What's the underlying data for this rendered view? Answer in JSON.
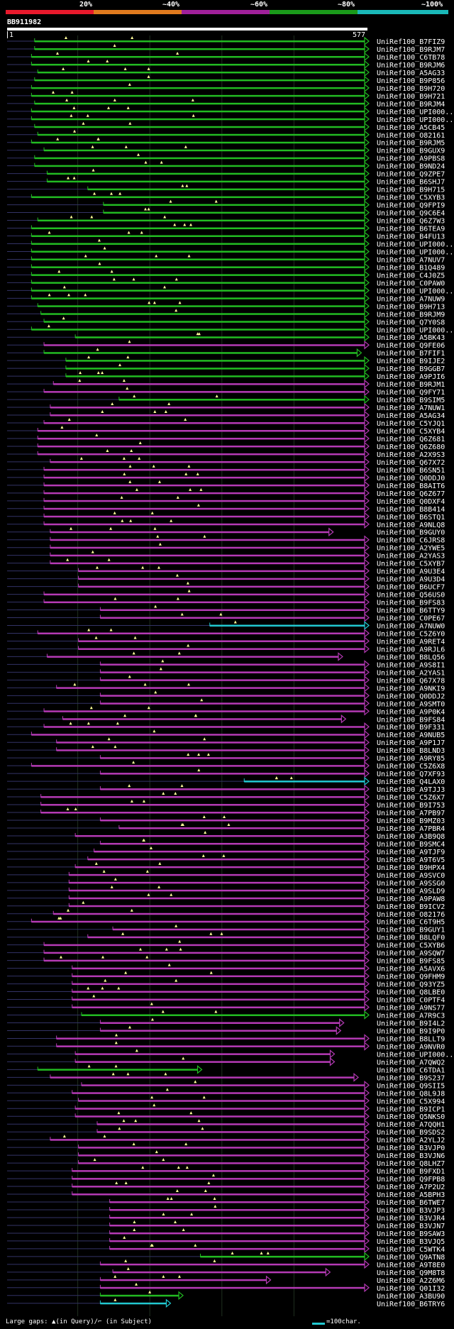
{
  "legend": {
    "ticks": [
      "20%",
      "~40%",
      "~60%",
      "~80%",
      "~100%"
    ],
    "colors": [
      "#e8192c",
      "#e07a1e",
      "#a0209a",
      "#1a9a1a",
      "#1ab8b8"
    ]
  },
  "query": {
    "name": "BB911982",
    "start": "1",
    "end": "577",
    "length": 577
  },
  "colors": {
    "green": "#22bb22",
    "magenta": "#b53ab5",
    "cyan": "#22c8d0",
    "marker": "#ffff99",
    "gap": "#333366"
  },
  "footer": {
    "text": "Large gaps: ▲(in Query)/⌐ (in Subject)",
    "scale_label": "=100char."
  },
  "hits": [
    {
      "id": "UniRef100_B7FIZ9",
      "c": "green",
      "s": 45,
      "e": 577
    },
    {
      "id": "UniRef100_B9RJM7",
      "c": "green",
      "s": 45,
      "e": 577
    },
    {
      "id": "UniRef100_C6TB78",
      "c": "green",
      "s": 40,
      "e": 577
    },
    {
      "id": "UniRef100_B9RJM6",
      "c": "green",
      "s": 40,
      "e": 577
    },
    {
      "id": "UniRef100_A5AG33",
      "c": "green",
      "s": 50,
      "e": 577
    },
    {
      "id": "UniRef100_B9P856",
      "c": "green",
      "s": 45,
      "e": 577
    },
    {
      "id": "UniRef100_B9H720",
      "c": "green",
      "s": 40,
      "e": 577
    },
    {
      "id": "UniRef100_B9H721",
      "c": "green",
      "s": 40,
      "e": 577
    },
    {
      "id": "UniRef100_B9RJM4",
      "c": "green",
      "s": 45,
      "e": 577
    },
    {
      "id": "UniRef100_UPI000..",
      "c": "green",
      "s": 40,
      "e": 577
    },
    {
      "id": "UniRef100_UPI000..",
      "c": "green",
      "s": 40,
      "e": 577
    },
    {
      "id": "UniRef100_A5CB45",
      "c": "green",
      "s": 45,
      "e": 577
    },
    {
      "id": "UniRef100_O82161",
      "c": "green",
      "s": 50,
      "e": 577
    },
    {
      "id": "UniRef100_B9RJM5",
      "c": "green",
      "s": 40,
      "e": 577
    },
    {
      "id": "UniRef100_B9GUX9",
      "c": "green",
      "s": 60,
      "e": 577
    },
    {
      "id": "UniRef100_A9PBS8",
      "c": "green",
      "s": 45,
      "e": 577
    },
    {
      "id": "UniRef100_B9ND24",
      "c": "green",
      "s": 45,
      "e": 577
    },
    {
      "id": "UniRef100_Q9ZPE7",
      "c": "green",
      "s": 65,
      "e": 577
    },
    {
      "id": "UniRef100_B6SHJ7",
      "c": "green",
      "s": 65,
      "e": 577
    },
    {
      "id": "UniRef100_B9H715",
      "c": "green",
      "s": 130,
      "e": 577
    },
    {
      "id": "UniRef100_C5XYB3",
      "c": "green",
      "s": 40,
      "e": 577
    },
    {
      "id": "UniRef100_Q9FPI9",
      "c": "green",
      "s": 155,
      "e": 577
    },
    {
      "id": "UniRef100_Q9C6E4",
      "c": "green",
      "s": 155,
      "e": 577
    },
    {
      "id": "UniRef100_Q6Z7W3",
      "c": "green",
      "s": 50,
      "e": 577
    },
    {
      "id": "UniRef100_B6TEA9",
      "c": "green",
      "s": 40,
      "e": 577
    },
    {
      "id": "UniRef100_B4FU13",
      "c": "green",
      "s": 40,
      "e": 577
    },
    {
      "id": "UniRef100_UPI000..",
      "c": "green",
      "s": 40,
      "e": 577
    },
    {
      "id": "UniRef100_UPI000..",
      "c": "green",
      "s": 40,
      "e": 577
    },
    {
      "id": "UniRef100_A7NUV7",
      "c": "green",
      "s": 40,
      "e": 577
    },
    {
      "id": "UniRef100_B1Q489",
      "c": "green",
      "s": 40,
      "e": 577
    },
    {
      "id": "UniRef100_C4J0Z5",
      "c": "green",
      "s": 40,
      "e": 577
    },
    {
      "id": "UniRef100_C0PAW0",
      "c": "green",
      "s": 40,
      "e": 577
    },
    {
      "id": "UniRef100_UPI000..",
      "c": "green",
      "s": 40,
      "e": 577
    },
    {
      "id": "UniRef100_A7NUW9",
      "c": "green",
      "s": 40,
      "e": 577
    },
    {
      "id": "UniRef100_B9H713",
      "c": "green",
      "s": 50,
      "e": 577
    },
    {
      "id": "UniRef100_B9RJM9",
      "c": "green",
      "s": 55,
      "e": 577
    },
    {
      "id": "UniRef100_Q7Y0S8",
      "c": "green",
      "s": 60,
      "e": 577
    },
    {
      "id": "UniRef100_UPI000..",
      "c": "green",
      "s": 40,
      "e": 577
    },
    {
      "id": "UniRef100_A5BK43",
      "c": "green",
      "s": 110,
      "e": 577
    },
    {
      "id": "UniRef100_Q9FE06",
      "c": "magenta",
      "s": 60,
      "e": 577
    },
    {
      "id": "UniRef100_B7FIF1",
      "c": "green",
      "s": 60,
      "e": 565
    },
    {
      "id": "UniRef100_B9IJE2",
      "c": "green",
      "s": 95,
      "e": 577
    },
    {
      "id": "UniRef100_B9GGB7",
      "c": "green",
      "s": 95,
      "e": 577
    },
    {
      "id": "UniRef100_A9PJI6",
      "c": "green",
      "s": 95,
      "e": 577
    },
    {
      "id": "UniRef100_B9RJM1",
      "c": "magenta",
      "s": 75,
      "e": 577
    },
    {
      "id": "UniRef100_Q9FY71",
      "c": "magenta",
      "s": 60,
      "e": 577
    },
    {
      "id": "UniRef100_B9SIM5",
      "c": "green",
      "s": 180,
      "e": 577
    },
    {
      "id": "UniRef100_A7NUW1",
      "c": "magenta",
      "s": 70,
      "e": 577
    },
    {
      "id": "UniRef100_A5AG34",
      "c": "magenta",
      "s": 70,
      "e": 577
    },
    {
      "id": "UniRef100_C5YJQ1",
      "c": "magenta",
      "s": 60,
      "e": 577
    },
    {
      "id": "UniRef100_C5XYB4",
      "c": "magenta",
      "s": 50,
      "e": 577
    },
    {
      "id": "UniRef100_Q6Z681",
      "c": "magenta",
      "s": 50,
      "e": 577
    },
    {
      "id": "UniRef100_Q6Z680",
      "c": "magenta",
      "s": 50,
      "e": 577
    },
    {
      "id": "UniRef100_A2X9S3",
      "c": "magenta",
      "s": 50,
      "e": 577
    },
    {
      "id": "UniRef100_Q67X72",
      "c": "magenta",
      "s": 70,
      "e": 577
    },
    {
      "id": "UniRef100_B6SN51",
      "c": "magenta",
      "s": 60,
      "e": 577
    },
    {
      "id": "UniRef100_Q0DDJ0",
      "c": "magenta",
      "s": 60,
      "e": 577
    },
    {
      "id": "UniRef100_B8AIT6",
      "c": "magenta",
      "s": 60,
      "e": 577
    },
    {
      "id": "UniRef100_Q6Z677",
      "c": "magenta",
      "s": 60,
      "e": 577
    },
    {
      "id": "UniRef100_Q0DXF4",
      "c": "magenta",
      "s": 60,
      "e": 577
    },
    {
      "id": "UniRef100_B8B414",
      "c": "magenta",
      "s": 60,
      "e": 577
    },
    {
      "id": "UniRef100_B6STQ1",
      "c": "magenta",
      "s": 60,
      "e": 577
    },
    {
      "id": "UniRef100_A9NLQ8",
      "c": "magenta",
      "s": 60,
      "e": 577
    },
    {
      "id": "UniRef100_B9GUY0",
      "c": "magenta",
      "s": 70,
      "e": 520
    },
    {
      "id": "UniRef100_C6JRS8",
      "c": "magenta",
      "s": 70,
      "e": 577
    },
    {
      "id": "UniRef100_A2YWE5",
      "c": "magenta",
      "s": 70,
      "e": 577
    },
    {
      "id": "UniRef100_A2YAS3",
      "c": "magenta",
      "s": 70,
      "e": 577
    },
    {
      "id": "UniRef100_C5XYB7",
      "c": "magenta",
      "s": 70,
      "e": 577
    },
    {
      "id": "UniRef100_A9U3E4",
      "c": "magenta",
      "s": 115,
      "e": 577
    },
    {
      "id": "UniRef100_A9U3D4",
      "c": "magenta",
      "s": 115,
      "e": 577
    },
    {
      "id": "UniRef100_B6UCF7",
      "c": "magenta",
      "s": 115,
      "e": 577
    },
    {
      "id": "UniRef100_Q56US0",
      "c": "magenta",
      "s": 60,
      "e": 577
    },
    {
      "id": "UniRef100_B9FS83",
      "c": "magenta",
      "s": 60,
      "e": 577
    },
    {
      "id": "UniRef100_B6TTY9",
      "c": "magenta",
      "s": 150,
      "e": 577
    },
    {
      "id": "UniRef100_C0PE67",
      "c": "magenta",
      "s": 150,
      "e": 577
    },
    {
      "id": "UniRef100_A7NUW0",
      "c": "cyan",
      "s": 325,
      "e": 577
    },
    {
      "id": "UniRef100_C5Z6Y0",
      "c": "magenta",
      "s": 50,
      "e": 577
    },
    {
      "id": "UniRef100_A9RET4",
      "c": "magenta",
      "s": 115,
      "e": 577
    },
    {
      "id": "UniRef100_A9RJL6",
      "c": "magenta",
      "s": 115,
      "e": 577
    },
    {
      "id": "UniRef100_B8LQ56",
      "c": "magenta",
      "s": 65,
      "e": 535
    },
    {
      "id": "UniRef100_A9S8I1",
      "c": "magenta",
      "s": 150,
      "e": 577
    },
    {
      "id": "UniRef100_A2YAS1",
      "c": "magenta",
      "s": 150,
      "e": 577
    },
    {
      "id": "UniRef100_Q67X78",
      "c": "magenta",
      "s": 150,
      "e": 577
    },
    {
      "id": "UniRef100_A9NKI9",
      "c": "magenta",
      "s": 80,
      "e": 577
    },
    {
      "id": "UniRef100_Q0DDJ2",
      "c": "magenta",
      "s": 150,
      "e": 577
    },
    {
      "id": "UniRef100_A9SMT0",
      "c": "magenta",
      "s": 150,
      "e": 577
    },
    {
      "id": "UniRef100_A9P0K4",
      "c": "magenta",
      "s": 60,
      "e": 577
    },
    {
      "id": "UniRef100_B9FS84",
      "c": "magenta",
      "s": 90,
      "e": 540
    },
    {
      "id": "UniRef100_B9F331",
      "c": "magenta",
      "s": 60,
      "e": 577
    },
    {
      "id": "UniRef100_A9NUB5",
      "c": "magenta",
      "s": 40,
      "e": 577
    },
    {
      "id": "UniRef100_A9P1J7",
      "c": "magenta",
      "s": 80,
      "e": 577
    },
    {
      "id": "UniRef100_B8LND3",
      "c": "magenta",
      "s": 80,
      "e": 577
    },
    {
      "id": "UniRef100_A9RY85",
      "c": "magenta",
      "s": 150,
      "e": 577
    },
    {
      "id": "UniRef100_C5Z6X8",
      "c": "magenta",
      "s": 40,
      "e": 577
    },
    {
      "id": "UniRef100_Q7XF93",
      "c": "magenta",
      "s": 150,
      "e": 577
    },
    {
      "id": "UniRef100_Q4LAX0",
      "c": "cyan",
      "s": 380,
      "e": 577
    },
    {
      "id": "UniRef100_A9TJJ3",
      "c": "magenta",
      "s": 150,
      "e": 577
    },
    {
      "id": "UniRef100_C5Z6X7",
      "c": "magenta",
      "s": 55,
      "e": 577
    },
    {
      "id": "UniRef100_B9I753",
      "c": "magenta",
      "s": 55,
      "e": 577
    },
    {
      "id": "UniRef100_A7PB97",
      "c": "magenta",
      "s": 55,
      "e": 577
    },
    {
      "id": "UniRef100_B9MZ03",
      "c": "magenta",
      "s": 150,
      "e": 577
    },
    {
      "id": "UniRef100_A7PBR4",
      "c": "magenta",
      "s": 180,
      "e": 577
    },
    {
      "id": "UniRef100_A3B9Q8",
      "c": "magenta",
      "s": 110,
      "e": 577
    },
    {
      "id": "UniRef100_B9SMC4",
      "c": "magenta",
      "s": 150,
      "e": 577
    },
    {
      "id": "UniRef100_A9TJF9",
      "c": "magenta",
      "s": 140,
      "e": 577
    },
    {
      "id": "UniRef100_A9T6V5",
      "c": "magenta",
      "s": 130,
      "e": 577
    },
    {
      "id": "UniRef100_B9HPX4",
      "c": "magenta",
      "s": 110,
      "e": 577
    },
    {
      "id": "UniRef100_A9SVC0",
      "c": "magenta",
      "s": 100,
      "e": 577
    },
    {
      "id": "UniRef100_A9SSG0",
      "c": "magenta",
      "s": 100,
      "e": 577
    },
    {
      "id": "UniRef100_A9SLD9",
      "c": "magenta",
      "s": 100,
      "e": 577
    },
    {
      "id": "UniRef100_A9PAW8",
      "c": "magenta",
      "s": 100,
      "e": 577
    },
    {
      "id": "UniRef100_B9ICV2",
      "c": "magenta",
      "s": 100,
      "e": 577
    },
    {
      "id": "UniRef100_O82176",
      "c": "magenta",
      "s": 75,
      "e": 577
    },
    {
      "id": "UniRef100_C6T9H5",
      "c": "magenta",
      "s": 40,
      "e": 577
    },
    {
      "id": "UniRef100_B9GUY1",
      "c": "magenta",
      "s": 170,
      "e": 577
    },
    {
      "id": "UniRef100_B8LQF0",
      "c": "magenta",
      "s": 130,
      "e": 577
    },
    {
      "id": "UniRef100_C5XYB6",
      "c": "magenta",
      "s": 60,
      "e": 577
    },
    {
      "id": "UniRef100_A9SQW7",
      "c": "magenta",
      "s": 60,
      "e": 577
    },
    {
      "id": "UniRef100_B9FS85",
      "c": "magenta",
      "s": 60,
      "e": 577
    },
    {
      "id": "UniRef100_A5AVX6",
      "c": "magenta",
      "s": 105,
      "e": 577
    },
    {
      "id": "UniRef100_Q9FHM9",
      "c": "magenta",
      "s": 105,
      "e": 577
    },
    {
      "id": "UniRef100_Q93YZ5",
      "c": "magenta",
      "s": 105,
      "e": 577
    },
    {
      "id": "UniRef100_Q8LBE0",
      "c": "magenta",
      "s": 105,
      "e": 577
    },
    {
      "id": "UniRef100_C0PTF4",
      "c": "magenta",
      "s": 105,
      "e": 577
    },
    {
      "id": "UniRef100_A9NS77",
      "c": "magenta",
      "s": 105,
      "e": 577
    },
    {
      "id": "UniRef100_A7R9C3",
      "c": "green",
      "s": 120,
      "e": 577
    },
    {
      "id": "UniRef100_B9I4L2",
      "c": "magenta",
      "s": 150,
      "e": 537
    },
    {
      "id": "UniRef100_B9I9P0",
      "c": "magenta",
      "s": 150,
      "e": 532
    },
    {
      "id": "UniRef100_B8LLT9",
      "c": "magenta",
      "s": 80,
      "e": 577
    },
    {
      "id": "UniRef100_A9NVR0",
      "c": "magenta",
      "s": 80,
      "e": 577
    },
    {
      "id": "UniRef100_UPI000..",
      "c": "magenta",
      "s": 110,
      "e": 522
    },
    {
      "id": "UniRef100_A7QWQ2",
      "c": "magenta",
      "s": 110,
      "e": 522
    },
    {
      "id": "UniRef100_C6TDA1",
      "c": "green",
      "s": 50,
      "e": 310
    },
    {
      "id": "UniRef100_B9S237",
      "c": "magenta",
      "s": 70,
      "e": 560
    },
    {
      "id": "UniRef100_Q9SII5",
      "c": "magenta",
      "s": 120,
      "e": 577
    },
    {
      "id": "UniRef100_Q8L9J8",
      "c": "magenta",
      "s": 105,
      "e": 577
    },
    {
      "id": "UniRef100_C5X994",
      "c": "magenta",
      "s": 115,
      "e": 577
    },
    {
      "id": "UniRef100_B9ICP1",
      "c": "magenta",
      "s": 110,
      "e": 577
    },
    {
      "id": "UniRef100_Q5NKS0",
      "c": "magenta",
      "s": 110,
      "e": 577
    },
    {
      "id": "UniRef100_A7QQH1",
      "c": "magenta",
      "s": 145,
      "e": 577
    },
    {
      "id": "UniRef100_B9SDS2",
      "c": "magenta",
      "s": 145,
      "e": 577
    },
    {
      "id": "UniRef100_A2YLJ2",
      "c": "magenta",
      "s": 70,
      "e": 577
    },
    {
      "id": "UniRef100_B3VJP0",
      "c": "magenta",
      "s": 115,
      "e": 577
    },
    {
      "id": "UniRef100_B3VJN6",
      "c": "magenta",
      "s": 115,
      "e": 577
    },
    {
      "id": "UniRef100_Q8LHZ7",
      "c": "magenta",
      "s": 115,
      "e": 577
    },
    {
      "id": "UniRef100_B9FXD1",
      "c": "magenta",
      "s": 105,
      "e": 577
    },
    {
      "id": "UniRef100_Q9FPB8",
      "c": "magenta",
      "s": 105,
      "e": 577
    },
    {
      "id": "UniRef100_A7P2U2",
      "c": "magenta",
      "s": 105,
      "e": 577
    },
    {
      "id": "UniRef100_A5BPH3",
      "c": "magenta",
      "s": 105,
      "e": 577
    },
    {
      "id": "UniRef100_B6TWE7",
      "c": "magenta",
      "s": 165,
      "e": 577
    },
    {
      "id": "UniRef100_B3VJP3",
      "c": "magenta",
      "s": 165,
      "e": 577
    },
    {
      "id": "UniRef100_B3VJR4",
      "c": "magenta",
      "s": 165,
      "e": 577
    },
    {
      "id": "UniRef100_B3VJN7",
      "c": "magenta",
      "s": 165,
      "e": 577
    },
    {
      "id": "UniRef100_B9SAW3",
      "c": "magenta",
      "s": 165,
      "e": 577
    },
    {
      "id": "UniRef100_B3VJQ5",
      "c": "magenta",
      "s": 165,
      "e": 577
    },
    {
      "id": "UniRef100_C5WTK4",
      "c": "magenta",
      "s": 165,
      "e": 577
    },
    {
      "id": "UniRef100_Q9ATN8",
      "c": "green",
      "s": 310,
      "e": 577
    },
    {
      "id": "UniRef100_A9T8E0",
      "c": "magenta",
      "s": 150,
      "e": 577
    },
    {
      "id": "UniRef100_Q9M8T8",
      "c": "magenta",
      "s": 170,
      "e": 515
    },
    {
      "id": "UniRef100_A2Z6M6",
      "c": "magenta",
      "s": 150,
      "e": 420
    },
    {
      "id": "UniRef100_Q01I32",
      "c": "magenta",
      "s": 150,
      "e": 577
    },
    {
      "id": "UniRef100_A3BU90",
      "c": "green",
      "s": 150,
      "e": 280
    },
    {
      "id": "UniRef100_B6TRY6",
      "c": "cyan",
      "s": 150,
      "e": 260
    }
  ]
}
